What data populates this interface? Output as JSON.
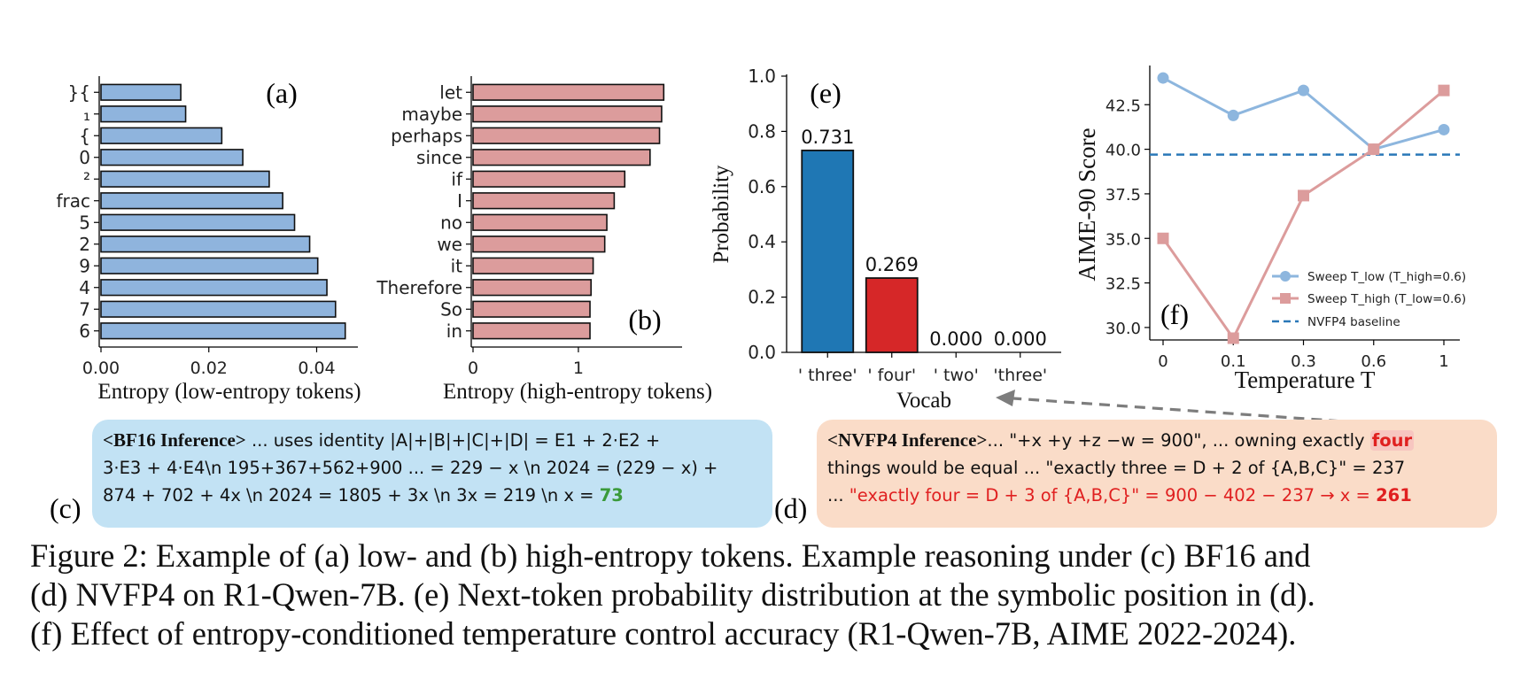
{
  "chart_data": [
    {
      "type": "bar",
      "orientation": "horizontal",
      "panel": "(a)",
      "categories": [
        "}{",
        "₁",
        "{",
        "0",
        "²",
        "frac",
        "5",
        "2",
        "9",
        "4",
        "7",
        "6"
      ],
      "values": [
        0.0148,
        0.0157,
        0.0224,
        0.0263,
        0.0312,
        0.0337,
        0.0359,
        0.0387,
        0.0402,
        0.0419,
        0.0435,
        0.0453
      ],
      "xlabel": "Entropy (low-entropy tokens)",
      "xlim": [
        0,
        0.046
      ],
      "xticks": [
        "0.00",
        "0.02",
        "0.04"
      ],
      "color": "#8fb4dd"
    },
    {
      "type": "bar",
      "orientation": "horizontal",
      "panel": "(b)",
      "categories": [
        "let",
        "maybe",
        "perhaps",
        "since",
        "if",
        "I",
        "no",
        "we",
        "it",
        "Therefore",
        "So",
        "in"
      ],
      "values": [
        1.81,
        1.79,
        1.77,
        1.68,
        1.44,
        1.34,
        1.27,
        1.25,
        1.14,
        1.12,
        1.11,
        1.11
      ],
      "xlabel": "Entropy (high-entropy tokens)",
      "xlim": [
        0,
        1.9
      ],
      "xticks": [
        "0",
        "1"
      ],
      "color": "#dc9c9c"
    },
    {
      "type": "bar",
      "panel": "(e)",
      "categories": [
        "' three'",
        "' four'",
        "' two'",
        "'three'"
      ],
      "values": [
        0.731,
        0.269,
        0.0,
        0.0
      ],
      "labels": [
        "0.731",
        "0.269",
        "0.000",
        "0.000"
      ],
      "colors": [
        "#1f77b4",
        "#d62728",
        "#1f77b4",
        "#1f77b4"
      ],
      "xlabel": "Vocab",
      "ylabel": "Probability",
      "ylim": [
        0,
        1.0
      ],
      "yticks": [
        "0.0",
        "0.2",
        "0.4",
        "0.6",
        "0.8",
        "1.0"
      ]
    },
    {
      "type": "line",
      "panel": "(f)",
      "x": [
        "0",
        "0.1",
        "0.3",
        "0.6",
        "1"
      ],
      "series": [
        {
          "name": "Sweep T_low (T_high=0.6)",
          "values": [
            44.0,
            41.9,
            43.3,
            40.0,
            41.1
          ],
          "color": "#8db6de",
          "marker": "circle"
        },
        {
          "name": "Sweep T_high (T_low=0.6)",
          "values": [
            35.0,
            29.4,
            37.4,
            40.0,
            43.3
          ],
          "color": "#dc9c9c",
          "marker": "square"
        }
      ],
      "baseline": {
        "name": "NVFP4 baseline",
        "value": 39.7,
        "color": "#2a78b8"
      },
      "xlabel": "Temperature T",
      "ylabel": "AIME-90 Score",
      "ylim": [
        29.3,
        44.5
      ],
      "yticks": [
        "30.0",
        "32.5",
        "35.0",
        "37.5",
        "40.0",
        "42.5"
      ],
      "legend": "bottom-right"
    }
  ],
  "panels": {
    "a": "(a)",
    "b": "(b)",
    "c": "(c)",
    "d": "(d)",
    "e": "(e)",
    "f": "(f)"
  },
  "box_c": {
    "tag": "<BF16 Inference>",
    "line1": " ... uses identity  |A|+|B|+|C|+|D| = E1 + 2·E2 +",
    "line2": "3·E3 + 4·E4\\n 195+367+562+900 ... = 229 − x \\n 2024 = (229 − x) +",
    "line3": "874 + 702 + 4x \\n 2024 = 1805 + 3x \\n 3x = 219 \\n x = ",
    "answer": "73"
  },
  "box_d": {
    "tag": "<NVFP4 Inference>",
    "line1": "... \"+x +y +z −w = 900\", ... owning exactly ",
    "highlight": "four",
    "line2": "things would be equal ... \"exactly three = D + 2 of {A,B,C}\" = 237",
    "line3_prefix": "... ",
    "line3_red": "\"exactly four = D + 3 of {A,B,C}\" = 900 − 402 − 237 → x = ",
    "answer": "261"
  },
  "caption": {
    "line1": "Figure 2: Example of (a) low- and (b) high-entropy tokens. Example reasoning under (c) BF16 and",
    "line2": "(d) NVFP4 on R1-Qwen-7B. (e) Next-token probability distribution at the symbolic position in (d).",
    "line3": "(f) Effect of entropy-conditioned temperature control accuracy (R1-Qwen-7B, AIME 2022-2024)."
  }
}
